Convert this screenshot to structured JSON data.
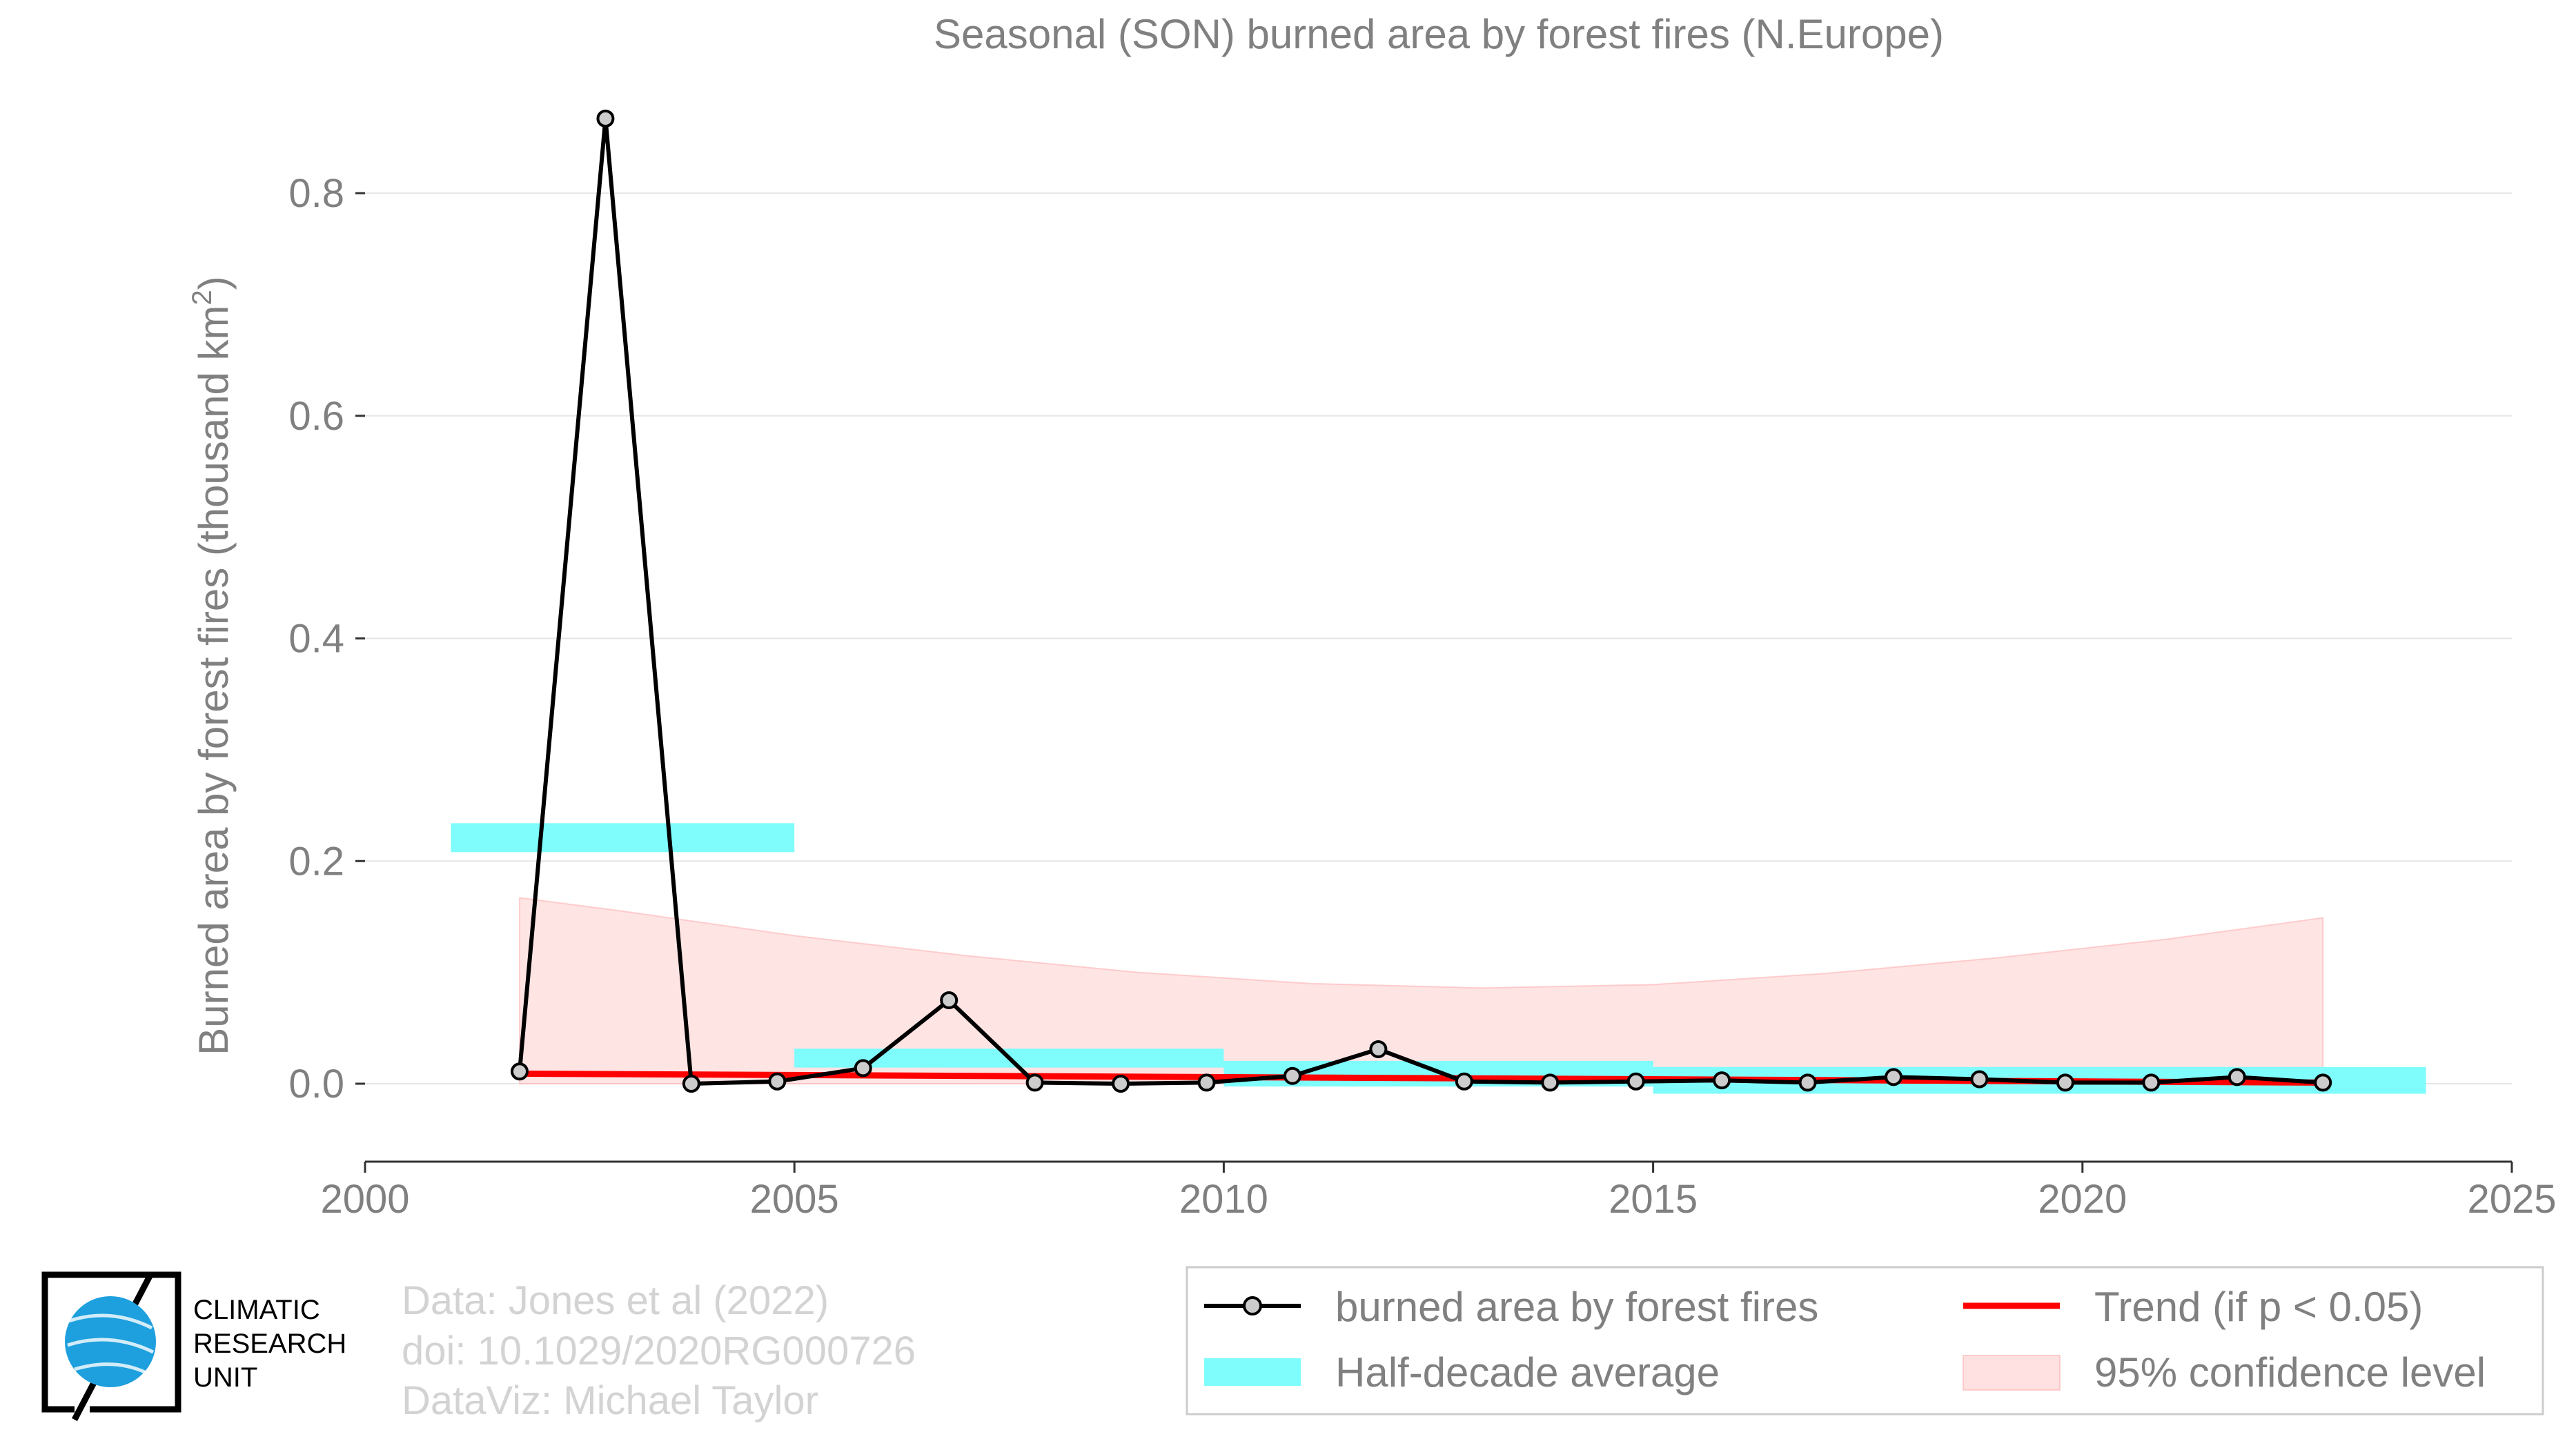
{
  "chart_data": {
    "type": "line",
    "title": "Seasonal (SON) burned area by forest fires (N.Europe)",
    "ylabel_main": "Burned area by forest fires (thousand km",
    "ylabel_sup": "2",
    "ylabel_close": ")",
    "xlabel": "",
    "xlim": [
      2000,
      2025
    ],
    "ylim": [
      -0.07,
      0.9
    ],
    "x_ticks": [
      2000,
      2005,
      2010,
      2015,
      2020,
      2025
    ],
    "x_tick_labels": [
      "2000",
      "2005",
      "2010",
      "2015",
      "2020",
      "2025"
    ],
    "y_ticks": [
      0.0,
      0.2,
      0.4,
      0.6,
      0.8
    ],
    "y_tick_labels": [
      "0.0",
      "0.2",
      "0.4",
      "0.6",
      "0.8"
    ],
    "grid": "horizontal",
    "legend_position": "bottom-right",
    "series": [
      {
        "name": "burned area by forest fires",
        "color": "#000000",
        "marker_fill": "#cccccc",
        "x": [
          2001.8,
          2002.8,
          2003.8,
          2004.8,
          2005.8,
          2006.8,
          2007.8,
          2008.8,
          2009.8,
          2010.8,
          2011.8,
          2012.8,
          2013.8,
          2014.8,
          2015.8,
          2016.8,
          2017.8,
          2018.8,
          2019.8,
          2020.8,
          2021.8,
          2022.8
        ],
        "y": [
          0.011,
          0.867,
          0.0,
          0.002,
          0.014,
          0.075,
          0.001,
          0.0,
          0.001,
          0.007,
          0.031,
          0.002,
          0.001,
          0.002,
          0.003,
          0.001,
          0.006,
          0.004,
          0.001,
          0.001,
          0.006,
          0.001
        ]
      }
    ],
    "half_decade_average": {
      "name": "Half-decade average",
      "color": "#7ffcfc",
      "bars": [
        {
          "x0": 2001.0,
          "x1": 2005.0,
          "y": 0.221,
          "thickness": 0.026
        },
        {
          "x0": 2005.0,
          "x1": 2010.0,
          "y": 0.023,
          "thickness": 0.017
        },
        {
          "x0": 2010.0,
          "x1": 2015.0,
          "y": 0.009,
          "thickness": 0.023
        },
        {
          "x0": 2015.0,
          "x1": 2024.0,
          "y": 0.003,
          "thickness": 0.024
        }
      ]
    },
    "trend": {
      "name": "Trend (if p < 0.05)",
      "color": "#ff0000",
      "x": [
        2001.8,
        2022.8
      ],
      "y": [
        0.009,
        0.001
      ]
    },
    "confidence_band": {
      "name": "95% confidence level",
      "color": "#ffb3b3",
      "x": [
        2001.8,
        2003.0,
        2005.0,
        2007.0,
        2009.0,
        2011.0,
        2013.0,
        2015.0,
        2017.0,
        2019.0,
        2021.0,
        2022.8
      ],
      "upper": [
        0.167,
        0.155,
        0.133,
        0.115,
        0.1,
        0.09,
        0.086,
        0.089,
        0.099,
        0.113,
        0.13,
        0.149
      ],
      "lower": [
        0.0,
        0.0,
        0.0,
        0.0,
        0.0,
        0.0,
        0.0,
        0.0,
        0.0,
        0.0,
        0.0,
        0.0
      ]
    }
  },
  "legend": {
    "items": [
      {
        "label": "burned area by forest fires"
      },
      {
        "label": "Trend (if p < 0.05)"
      },
      {
        "label": "Half-decade average"
      },
      {
        "label": "95% confidence level"
      }
    ]
  },
  "credits": {
    "line1": "Data: Jones et al (2022)",
    "line2": "doi: 10.1029/2020RG000726",
    "line3": "DataViz: Michael Taylor"
  },
  "logo": {
    "line1": "CLIMATIC",
    "line2": "RESEARCH",
    "line3": "UNIT",
    "globe_color": "#1e9fde"
  },
  "colors": {
    "text_gray": "#808080",
    "credit_gray": "#d3d3d3",
    "grid": "#e6e6e6",
    "axis": "#333333"
  }
}
